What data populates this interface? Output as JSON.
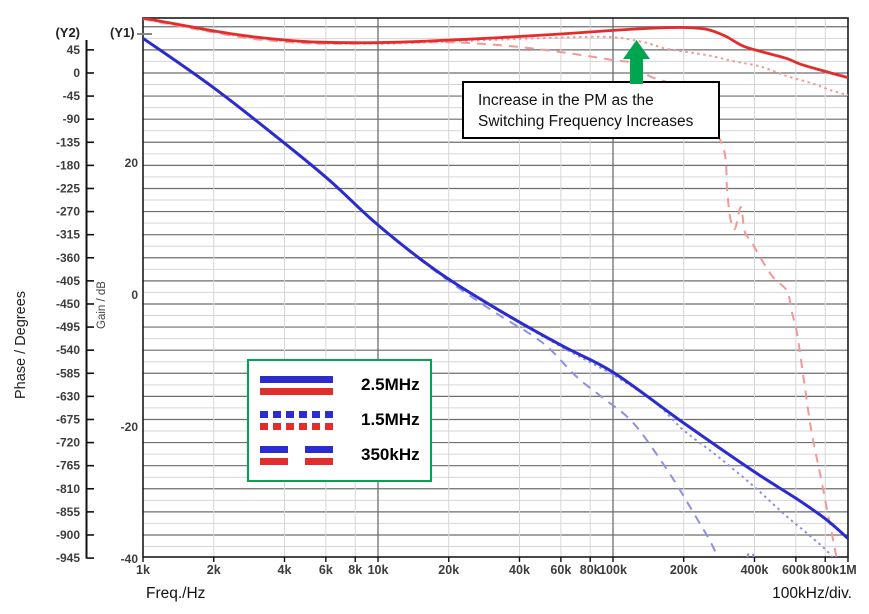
{
  "page": {
    "background": "#ffffff"
  },
  "colors": {
    "blue": "#2B2BD0",
    "blue_light": "#9090E2",
    "red": "#E32D2D",
    "red_light": "#F29898",
    "green": "#00A550",
    "grid_major": "#6E6E6E",
    "grid_minor": "#D6D6D6",
    "axis": "#1A1A1A",
    "tick_text": "#3C3C3C"
  },
  "chart_data": {
    "type": "line",
    "title": "",
    "x_axis": {
      "title": "Freq./Hz",
      "scale": "log",
      "min": 1000,
      "max": 1000000,
      "div_note": "100kHz/div.",
      "ticks": [
        {
          "f": 1000,
          "label": "1k"
        },
        {
          "f": 2000,
          "label": "2k"
        },
        {
          "f": 4000,
          "label": "4k"
        },
        {
          "f": 6000,
          "label": "6k"
        },
        {
          "f": 8000,
          "label": "8k"
        },
        {
          "f": 10000,
          "label": "10k"
        },
        {
          "f": 20000,
          "label": "20k"
        },
        {
          "f": 40000,
          "label": "40k"
        },
        {
          "f": 60000,
          "label": "60k"
        },
        {
          "f": 80000,
          "label": "80k"
        },
        {
          "f": 100000,
          "label": "100k"
        },
        {
          "f": 200000,
          "label": "200k"
        },
        {
          "f": 400000,
          "label": "400k"
        },
        {
          "f": 600000,
          "label": "600k"
        },
        {
          "f": 800000,
          "label": "800k"
        },
        {
          "f": 1000000,
          "label": "1M"
        }
      ],
      "decade_labels": [
        "1k",
        "10k",
        "100k",
        "1M"
      ]
    },
    "y1_axis": {
      "tag": "(Y1)",
      "title": "Gain / dB",
      "min": -39.7,
      "max": 41.97,
      "ticks": [
        20,
        0,
        -20,
        -40
      ]
    },
    "y2_axis": {
      "tag": "(Y2)",
      "title": "Phase / Degrees",
      "min": -942.9,
      "max": 107.1,
      "major_step_deg": 45,
      "minor_step_deg": 22.5,
      "ticks": [
        45,
        0,
        -45,
        -90,
        -135,
        -180,
        -225,
        -270,
        -315,
        -360,
        -405,
        -450,
        -495,
        -540,
        -585,
        -630,
        -675,
        -720,
        -765,
        -810,
        -855,
        -900,
        -945
      ]
    },
    "series": [
      {
        "name": "phase-350kHz",
        "legend_group": "350kHz",
        "axis": "y2",
        "color_key": "red_light",
        "dash": "dashed",
        "width": 2,
        "points": [
          [
            1000,
            105
          ],
          [
            1400,
            92
          ],
          [
            2000,
            79
          ],
          [
            3000,
            66
          ],
          [
            5000,
            58
          ],
          [
            8000,
            57
          ],
          [
            12000,
            59
          ],
          [
            18000,
            60
          ],
          [
            24000,
            58.5
          ],
          [
            39000,
            51
          ],
          [
            64000,
            39
          ],
          [
            100000,
            25
          ],
          [
            122000,
            19
          ],
          [
            143000,
            -6
          ],
          [
            187000,
            -27
          ],
          [
            234000,
            -72
          ],
          [
            294000,
            -144
          ],
          [
            306000,
            -228
          ],
          [
            315000,
            -281
          ],
          [
            330000,
            -304
          ],
          [
            350000,
            -261
          ],
          [
            363000,
            -308
          ],
          [
            388000,
            -329
          ],
          [
            422000,
            -358
          ],
          [
            478000,
            -397
          ],
          [
            550000,
            -425
          ],
          [
            578000,
            -468
          ],
          [
            607000,
            -507
          ],
          [
            650000,
            -600
          ],
          [
            700000,
            -700
          ],
          [
            760000,
            -780
          ],
          [
            830000,
            -870
          ],
          [
            900000,
            -950
          ]
        ]
      },
      {
        "name": "phase-1.5MHz",
        "legend_group": "1.5MHz",
        "axis": "y2",
        "color_key": "red_light",
        "dash": "dotted",
        "width": 2,
        "points": [
          [
            1000,
            106
          ],
          [
            1400,
            93
          ],
          [
            2000,
            80
          ],
          [
            3000,
            68
          ],
          [
            5000,
            59
          ],
          [
            8000,
            57
          ],
          [
            12000,
            57.5
          ],
          [
            20000,
            61
          ],
          [
            33000,
            65
          ],
          [
            60000,
            69
          ],
          [
            97000,
            70
          ],
          [
            135000,
            60
          ],
          [
            170000,
            47
          ],
          [
            250000,
            35
          ],
          [
            325000,
            23
          ],
          [
            420000,
            13
          ],
          [
            550000,
            -6
          ],
          [
            700000,
            -20
          ],
          [
            860000,
            -35
          ],
          [
            1000000,
            -43
          ]
        ]
      },
      {
        "name": "gain-350kHz",
        "legend_group": "350kHz",
        "axis": "y1",
        "color_key": "blue_light",
        "dash": "dashed",
        "width": 2,
        "points": [
          [
            1000,
            38.9
          ],
          [
            2000,
            31.4
          ],
          [
            4000,
            23.0
          ],
          [
            6300,
            17.1
          ],
          [
            10000,
            10.5
          ],
          [
            18000,
            3.3
          ],
          [
            31000,
            -2.5
          ],
          [
            50000,
            -7.2
          ],
          [
            70000,
            -12.4
          ],
          [
            90000,
            -15.5
          ],
          [
            122000,
            -19.4
          ],
          [
            170000,
            -26.5
          ],
          [
            220000,
            -33.0
          ],
          [
            270000,
            -38.6
          ],
          [
            295000,
            -43.0
          ],
          [
            340000,
            -44.0
          ],
          [
            365000,
            -40.6
          ],
          [
            385000,
            -38.8
          ],
          [
            405000,
            -40.6
          ],
          [
            430000,
            -44.0
          ]
        ]
      },
      {
        "name": "gain-1.5MHz",
        "legend_group": "1.5MHz",
        "axis": "y1",
        "color_key": "blue_light",
        "dash": "dotted",
        "width": 2,
        "points": [
          [
            1000,
            38.9
          ],
          [
            2000,
            31.4
          ],
          [
            4000,
            23.0
          ],
          [
            6300,
            17.2
          ],
          [
            10000,
            10.6
          ],
          [
            18000,
            3.5
          ],
          [
            31000,
            -1.9
          ],
          [
            60000,
            -7.8
          ],
          [
            100000,
            -12.1
          ],
          [
            150000,
            -16.2
          ],
          [
            200000,
            -20.5
          ],
          [
            280000,
            -24.5
          ],
          [
            400000,
            -29.1
          ],
          [
            550000,
            -33.6
          ],
          [
            700000,
            -36.7
          ],
          [
            860000,
            -39.8
          ],
          [
            1000000,
            -44.5
          ]
        ]
      },
      {
        "name": "gain-2.5MHz",
        "legend_group": "2.5MHz",
        "axis": "y1",
        "color_key": "blue",
        "dash": "solid",
        "width": 3,
        "points": [
          [
            1000,
            38.9
          ],
          [
            2000,
            31.4
          ],
          [
            4000,
            23.0
          ],
          [
            6300,
            17.2
          ],
          [
            10000,
            10.6
          ],
          [
            18000,
            3.5
          ],
          [
            31000,
            -1.8
          ],
          [
            60000,
            -7.6
          ],
          [
            100000,
            -11.7
          ],
          [
            200000,
            -19.4
          ],
          [
            400000,
            -26.8
          ],
          [
            600000,
            -30.8
          ],
          [
            800000,
            -33.9
          ],
          [
            1000000,
            -36.9
          ]
        ]
      },
      {
        "name": "phase-2.5MHz",
        "legend_group": "2.5MHz",
        "axis": "y2",
        "color_key": "red",
        "dash": "solid",
        "width": 2.8,
        "points": [
          [
            1000,
            107
          ],
          [
            1400,
            95
          ],
          [
            2000,
            82
          ],
          [
            3000,
            70
          ],
          [
            5000,
            61
          ],
          [
            8000,
            59
          ],
          [
            12000,
            60
          ],
          [
            20000,
            64
          ],
          [
            33000,
            69
          ],
          [
            60000,
            76
          ],
          [
            100000,
            83
          ],
          [
            150000,
            87.5
          ],
          [
            200000,
            88.5
          ],
          [
            250000,
            85
          ],
          [
            300000,
            72
          ],
          [
            360000,
            52
          ],
          [
            450000,
            39
          ],
          [
            550000,
            28
          ],
          [
            630000,
            17
          ],
          [
            800000,
            3
          ],
          [
            1000000,
            -9
          ]
        ]
      }
    ],
    "legend": {
      "items": [
        {
          "label": "2.5MHz",
          "style": "solid"
        },
        {
          "label": "1.5MHz",
          "style": "dotted"
        },
        {
          "label": "350kHz",
          "style": "dashed"
        }
      ]
    },
    "annotation": {
      "lines": [
        "Increase in the PM as the",
        "Switching Frequency Increases"
      ]
    }
  }
}
